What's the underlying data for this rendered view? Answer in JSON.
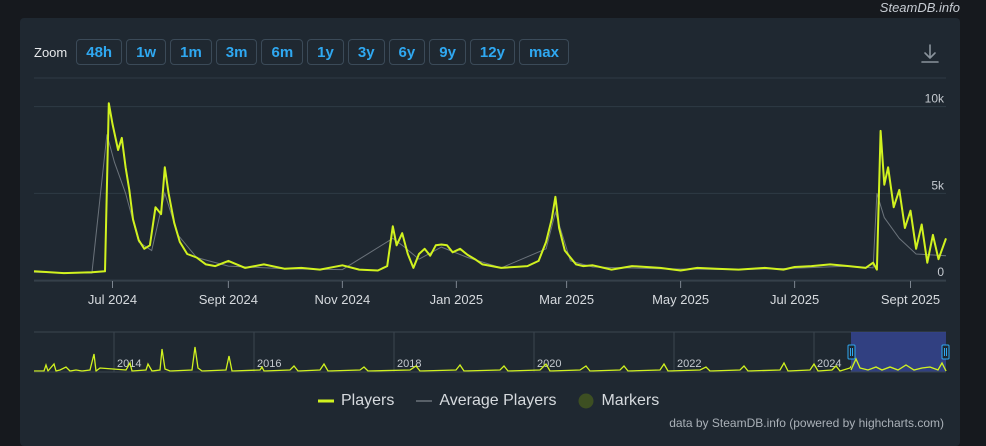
{
  "watermark": "SteamDB.info",
  "zoom": {
    "label": "Zoom",
    "buttons": [
      "48h",
      "1w",
      "1m",
      "3m",
      "6m",
      "1y",
      "3y",
      "6y",
      "9y",
      "12y",
      "max"
    ]
  },
  "legend": {
    "players": "Players",
    "average": "Average Players",
    "markers": "Markers"
  },
  "credits": "data by SteamDB.info (powered by highcharts.com)",
  "colors": {
    "players": "#d1f21f",
    "average": "#6b737b",
    "markers": "#3d4f22",
    "navigator_mask": "#35448f",
    "grid": "#2f3a45",
    "zoom_text": "#2fa8f1"
  },
  "chart_data": {
    "type": "line",
    "x_range": [
      "2024-05-20",
      "2025-09-20"
    ],
    "ylim": [
      0,
      10500
    ],
    "y_ticks": [
      0,
      5000,
      10000
    ],
    "y_tick_labels": [
      "0",
      "5k",
      "10k"
    ],
    "x_tick_labels": [
      "Jul 2024",
      "Sept 2024",
      "Nov 2024",
      "Jan 2025",
      "Mar 2025",
      "May 2025",
      "Jul 2025",
      "Sept 2025"
    ],
    "x_tick_dates": [
      "2024-07-01",
      "2024-09-01",
      "2024-11-01",
      "2025-01-01",
      "2025-03-01",
      "2025-05-01",
      "2025-07-01",
      "2025-09-01"
    ],
    "series": [
      {
        "name": "Players",
        "x": [
          "2024-05-20",
          "2024-06-05",
          "2024-06-20",
          "2024-06-27",
          "2024-06-29",
          "2024-07-01",
          "2024-07-04",
          "2024-07-06",
          "2024-07-08",
          "2024-07-10",
          "2024-07-12",
          "2024-07-15",
          "2024-07-18",
          "2024-07-21",
          "2024-07-24",
          "2024-07-27",
          "2024-07-29",
          "2024-07-31",
          "2024-08-03",
          "2024-08-06",
          "2024-08-10",
          "2024-08-15",
          "2024-08-20",
          "2024-08-25",
          "2024-09-01",
          "2024-09-10",
          "2024-09-20",
          "2024-10-01",
          "2024-10-10",
          "2024-10-20",
          "2024-11-01",
          "2024-11-10",
          "2024-11-20",
          "2024-11-25",
          "2024-11-28",
          "2024-11-30",
          "2024-12-03",
          "2024-12-06",
          "2024-12-09",
          "2024-12-12",
          "2024-12-15",
          "2024-12-18",
          "2024-12-21",
          "2024-12-24",
          "2024-12-27",
          "2024-12-30",
          "2025-01-03",
          "2025-01-07",
          "2025-01-11",
          "2025-01-15",
          "2025-01-20",
          "2025-01-25",
          "2025-02-01",
          "2025-02-08",
          "2025-02-14",
          "2025-02-18",
          "2025-02-21",
          "2025-02-23",
          "2025-02-25",
          "2025-02-28",
          "2025-03-03",
          "2025-03-06",
          "2025-03-10",
          "2025-03-15",
          "2025-03-25",
          "2025-04-05",
          "2025-04-20",
          "2025-05-01",
          "2025-05-10",
          "2025-05-20",
          "2025-06-01",
          "2025-06-15",
          "2025-06-25",
          "2025-07-01",
          "2025-07-10",
          "2025-07-20",
          "2025-07-30",
          "2025-08-08",
          "2025-08-12",
          "2025-08-14",
          "2025-08-16",
          "2025-08-18",
          "2025-08-20",
          "2025-08-23",
          "2025-08-26",
          "2025-08-29",
          "2025-09-01",
          "2025-09-04",
          "2025-09-07",
          "2025-09-10",
          "2025-09-13",
          "2025-09-16",
          "2025-09-20"
        ],
        "values": [
          500,
          400,
          450,
          500,
          10200,
          9000,
          7500,
          8200,
          6500,
          5200,
          3500,
          2300,
          1800,
          2000,
          4200,
          3800,
          6500,
          5000,
          3300,
          2200,
          1500,
          1300,
          900,
          800,
          1100,
          700,
          900,
          650,
          700,
          600,
          850,
          600,
          550,
          800,
          3100,
          2000,
          2700,
          1500,
          700,
          1500,
          1800,
          1400,
          2000,
          2050,
          2000,
          1600,
          1800,
          1450,
          1200,
          900,
          800,
          700,
          750,
          800,
          1100,
          2200,
          3500,
          4800,
          3000,
          1700,
          1300,
          900,
          800,
          850,
          600,
          800,
          700,
          550,
          700,
          650,
          600,
          700,
          600,
          750,
          800,
          900,
          800,
          700,
          1000,
          600,
          8600,
          5500,
          6500,
          4200,
          5200,
          3000,
          4000,
          1800,
          3200,
          1000,
          2600,
          1200,
          2400
        ]
      },
      {
        "name": "Average Players",
        "x": [
          "2024-05-20",
          "2024-06-20",
          "2024-06-28",
          "2024-07-02",
          "2024-07-08",
          "2024-07-15",
          "2024-07-22",
          "2024-07-29",
          "2024-08-05",
          "2024-08-15",
          "2024-09-01",
          "2024-10-01",
          "2024-11-01",
          "2024-11-28",
          "2024-12-03",
          "2024-12-12",
          "2024-12-24",
          "2025-01-07",
          "2025-01-25",
          "2025-02-18",
          "2025-02-23",
          "2025-03-03",
          "2025-03-15",
          "2025-04-20",
          "2025-06-01",
          "2025-07-01",
          "2025-07-30",
          "2025-08-12",
          "2025-08-14",
          "2025-08-18",
          "2025-08-26",
          "2025-09-04",
          "2025-09-20"
        ],
        "values": [
          450,
          400,
          8400,
          6800,
          5000,
          2200,
          1700,
          5000,
          2600,
          1300,
          800,
          650,
          600,
          2400,
          2000,
          1200,
          1900,
          1300,
          700,
          1800,
          3900,
          1100,
          750,
          650,
          600,
          680,
          800,
          700,
          5000,
          3600,
          2400,
          1500,
          1400
        ]
      }
    ],
    "navigator": {
      "x_tick_labels": [
        "2014",
        "2016",
        "2018",
        "2020",
        "2022",
        "2024"
      ]
    }
  }
}
